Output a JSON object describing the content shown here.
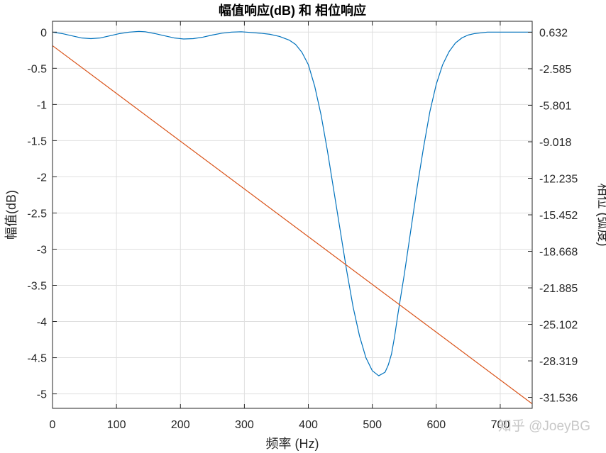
{
  "watermark": "知乎 @JoeyBG",
  "chart_data": {
    "type": "line",
    "title": "幅值响应(dB) 和 相位响应",
    "xlabel": "频率 (Hz)",
    "ylabel": "幅值(dB)",
    "ylabel_right": "相位 (弧度)",
    "xlim": [
      0,
      750
    ],
    "ylim": [
      -5.2,
      0.15
    ],
    "ylim_right": [
      -32.5,
      1.6
    ],
    "xticks": [
      "0",
      "100",
      "200",
      "300",
      "400",
      "500",
      "600",
      "700"
    ],
    "yticks": [
      "0",
      "-0.5",
      "-1",
      "-1.5",
      "-2",
      "-2.5",
      "-3",
      "-3.5",
      "-4",
      "-4.5",
      "-5"
    ],
    "yticks_right": [
      "0.632",
      "-2.585",
      "-5.801",
      "-9.018",
      "-12.235",
      "-15.452",
      "-18.668",
      "-21.885",
      "-25.102",
      "-28.319",
      "-31.536"
    ],
    "grid": true,
    "series": [
      {
        "axis": "left",
        "color": "#0072BD",
        "x": [
          0,
          15,
          30,
          45,
          60,
          75,
          90,
          105,
          120,
          135,
          145,
          160,
          175,
          190,
          205,
          220,
          235,
          250,
          265,
          280,
          295,
          310,
          325,
          340,
          355,
          370,
          380,
          390,
          400,
          410,
          420,
          430,
          440,
          450,
          460,
          470,
          480,
          490,
          500,
          510,
          520,
          525,
          530,
          535,
          540,
          550,
          560,
          570,
          580,
          590,
          600,
          610,
          620,
          630,
          640,
          650,
          660,
          670,
          680,
          690,
          700,
          710,
          720,
          730,
          740,
          750
        ],
        "y": [
          0,
          -0.02,
          -0.05,
          -0.08,
          -0.09,
          -0.08,
          -0.05,
          -0.02,
          0,
          0.01,
          0.005,
          -0.02,
          -0.05,
          -0.08,
          -0.095,
          -0.09,
          -0.07,
          -0.04,
          -0.015,
          0,
          0.005,
          -0.005,
          -0.015,
          -0.03,
          -0.06,
          -0.11,
          -0.17,
          -0.28,
          -0.45,
          -0.75,
          -1.15,
          -1.65,
          -2.2,
          -2.75,
          -3.3,
          -3.8,
          -4.2,
          -4.5,
          -4.68,
          -4.75,
          -4.7,
          -4.6,
          -4.45,
          -4.2,
          -3.9,
          -3.35,
          -2.75,
          -2.15,
          -1.6,
          -1.1,
          -0.72,
          -0.45,
          -0.27,
          -0.15,
          -0.08,
          -0.04,
          -0.02,
          -0.01,
          0,
          0,
          0,
          0,
          0,
          0,
          0,
          0
        ]
      },
      {
        "axis": "right",
        "color": "#D95319",
        "x": [
          0,
          750
        ],
        "y": [
          -0.55,
          -32.1
        ]
      }
    ]
  }
}
